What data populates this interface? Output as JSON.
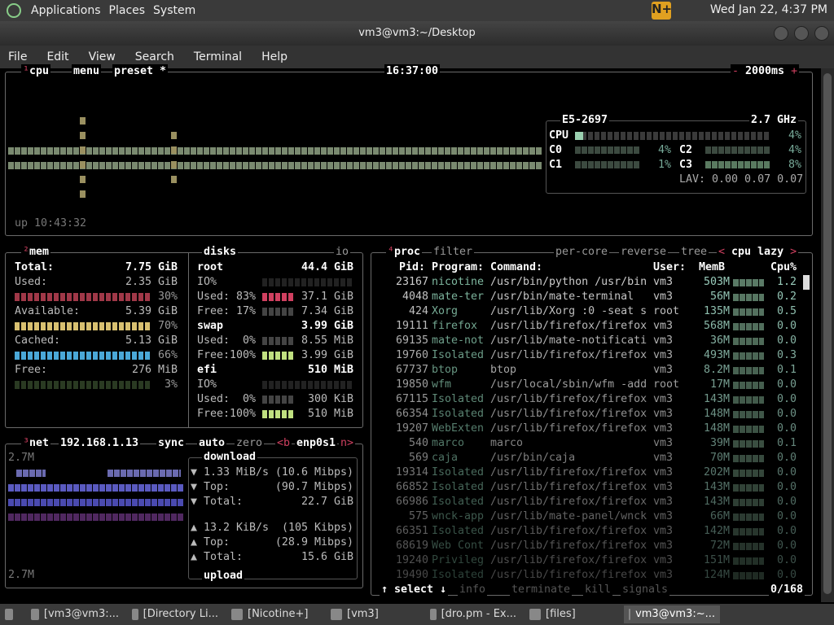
{
  "panel": {
    "menus": [
      "Applications",
      "Places",
      "System"
    ],
    "clock": "Wed Jan 22,  4:37 PM"
  },
  "window": {
    "title": "vm3@vm3:~/Desktop",
    "menu": [
      "File",
      "Edit",
      "View",
      "Search",
      "Terminal",
      "Help"
    ]
  },
  "cpu": {
    "title_num": "¹",
    "title": "cpu",
    "menu": "menu",
    "preset": "preset *",
    "time": "16:37:00",
    "interval": "2000ms",
    "minus": "-",
    "plus": "+",
    "uptime": "up 10:43:32",
    "model": "E5-2697",
    "freq": "2.7 GHz",
    "total_label": "CPU",
    "total_pct": "4%",
    "total_value": 4,
    "cores": [
      {
        "label": "C0",
        "pct": "4%"
      },
      {
        "label": "C1",
        "pct": "1%"
      },
      {
        "label": "C2",
        "pct": "4%"
      },
      {
        "label": "C3",
        "pct": "8%"
      }
    ],
    "lav": "LAV: 0.00 0.07 0.07"
  },
  "mem": {
    "title_num": "²",
    "title": "mem",
    "total_label": "Total:",
    "total": "7.75 GiB",
    "rows": [
      {
        "label": "Used:",
        "value": "2.35 GiB",
        "pct": "30%",
        "color": "#a03848"
      },
      {
        "label": "Available:",
        "value": "5.39 GiB",
        "pct": "70%",
        "color": "#d8c070"
      },
      {
        "label": "Cached:",
        "value": "5.13 GiB",
        "pct": "66%",
        "color": "#4aa8d8"
      },
      {
        "label": "Free:",
        "value": "276 MiB",
        "pct": "3%",
        "color": "#2a3a22"
      }
    ]
  },
  "disks": {
    "title": "disks",
    "io": "io",
    "items": [
      {
        "name": "root",
        "size": "44.4 GiB",
        "lines": [
          "IO%",
          "Used: 83%",
          "Free: 17%"
        ],
        "vals": [
          "",
          "37.1 GiB",
          "7.34 GiB"
        ]
      },
      {
        "name": "swap",
        "size": "3.99 GiB",
        "lines": [
          "Used:  0%",
          "Free:100%"
        ],
        "vals": [
          "8.55 MiB",
          "3.99 GiB"
        ]
      },
      {
        "name": "efi",
        "size": "510 MiB",
        "lines": [
          "IO%",
          "Used:  0%",
          "Free:100%"
        ],
        "vals": [
          "",
          "300 KiB",
          "510 MiB"
        ]
      }
    ]
  },
  "net": {
    "title_num": "³",
    "title": "net",
    "ip": "192.168.1.13",
    "sync": "sync",
    "auto": "auto",
    "zero": "zero",
    "prev": "<b",
    "iface": "enp0s1",
    "next": "n>",
    "scale_top": "2.7M",
    "scale_bottom": "2.7M",
    "download": "download",
    "upload": "upload",
    "down_rows": [
      [
        "▼ 1.33 MiB/s",
        "(10.6 Mibps)"
      ],
      [
        "▼ Top:",
        "(90.7 Mibps)"
      ],
      [
        "▼ Total:",
        "22.7 GiB"
      ]
    ],
    "up_rows": [
      [
        "▲ 13.2 KiB/s",
        "(105 Kibps)"
      ],
      [
        "▲ Top:",
        "(28.9 Mibps)"
      ],
      [
        "▲ Total:",
        "15.6 GiB"
      ]
    ]
  },
  "proc": {
    "title_num": "⁴",
    "title": "proc",
    "filter": "filter",
    "per_core": "per-core",
    "reverse": "reverse",
    "tree": "tree",
    "sort_prev": "<",
    "sort": "cpu lazy",
    "sort_next": ">",
    "headers": {
      "pid": "Pid:",
      "program": "Program:",
      "command": "Command:",
      "user": "User:",
      "mem": "MemB",
      "cpu": "Cpu%"
    },
    "rows": [
      [
        "23167",
        "nicotine",
        "/usr/bin/python /usr/bin",
        "vm3",
        "503M",
        "1.2"
      ],
      [
        "4048",
        "mate-ter",
        "/usr/bin/mate-terminal",
        "vm3",
        "56M",
        "0.2"
      ],
      [
        "424",
        "Xorg",
        "/usr/lib/Xorg :0 -seat s",
        "root",
        "135M",
        "0.5"
      ],
      [
        "19111",
        "firefox",
        "/usr/lib/firefox/firefox",
        "vm3",
        "568M",
        "0.0"
      ],
      [
        "69135",
        "mate-not",
        "/usr/lib/mate-notificati",
        "vm3",
        "36M",
        "0.0"
      ],
      [
        "19760",
        "Isolated",
        "/usr/lib/firefox/firefox",
        "vm3",
        "493M",
        "0.3"
      ],
      [
        "67737",
        "btop",
        "btop",
        "vm3",
        "8.2M",
        "0.1"
      ],
      [
        "19850",
        "wfm",
        "/usr/local/sbin/wfm -add",
        "root",
        "17M",
        "0.0"
      ],
      [
        "67115",
        "Isolated",
        "/usr/lib/firefox/firefox",
        "vm3",
        "143M",
        "0.0"
      ],
      [
        "66354",
        "Isolated",
        "/usr/lib/firefox/firefox",
        "vm3",
        "148M",
        "0.0"
      ],
      [
        "19207",
        "WebExten",
        "/usr/lib/firefox/firefox",
        "vm3",
        "148M",
        "0.0"
      ],
      [
        "540",
        "marco",
        "marco",
        "vm3",
        "39M",
        "0.1"
      ],
      [
        "569",
        "caja",
        "/usr/bin/caja",
        "vm3",
        "70M",
        "0.0"
      ],
      [
        "19314",
        "Isolated",
        "/usr/lib/firefox/firefox",
        "vm3",
        "202M",
        "0.0"
      ],
      [
        "66852",
        "Isolated",
        "/usr/lib/firefox/firefox",
        "vm3",
        "143M",
        "0.0"
      ],
      [
        "66986",
        "Isolated",
        "/usr/lib/firefox/firefox",
        "vm3",
        "143M",
        "0.0"
      ],
      [
        "575",
        "wnck-app",
        "/usr/lib/mate-panel/wnck",
        "vm3",
        "66M",
        "0.0"
      ],
      [
        "66351",
        "Isolated",
        "/usr/lib/firefox/firefox",
        "vm3",
        "142M",
        "0.0"
      ],
      [
        "68619",
        "Web Cont",
        "/usr/lib/firefox/firefox",
        "vm3",
        "72M",
        "0.0"
      ],
      [
        "19240",
        "Privileg",
        "/usr/lib/firefox/firefox",
        "vm3",
        "151M",
        "0.0"
      ],
      [
        "19490",
        "Isolated",
        "/usr/lib/firefox/firefox",
        "vm3",
        "124M",
        "0.0"
      ]
    ],
    "footer": {
      "select": "↑ select ↓",
      "info": "info",
      "terminate": "terminate",
      "kill": "kill",
      "signals": "signals",
      "count": "0/168"
    }
  },
  "taskbar": {
    "items": [
      "[vm3@vm3:...",
      "[Directory Li...",
      "[Nicotine+]",
      "[vm3]",
      "[dro.pm - Ex...",
      "[files]",
      "vm3@vm3:~..."
    ]
  }
}
